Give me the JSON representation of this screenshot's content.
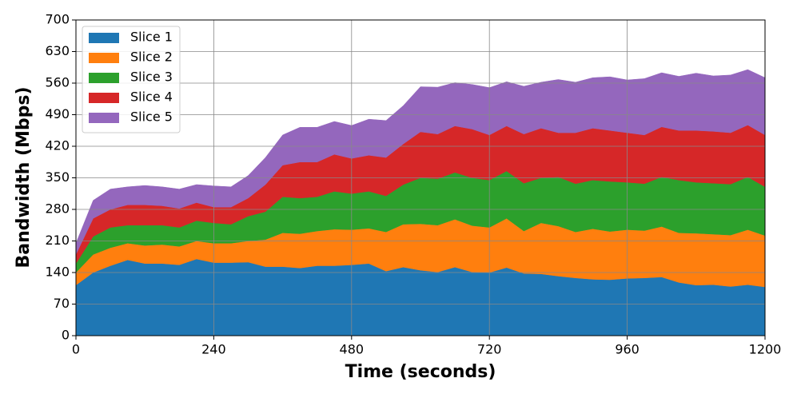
{
  "chart_data": {
    "type": "stacked_area",
    "x_label": "Time (seconds)",
    "y_label": "Bandwidth (Mbps)",
    "x": [
      0,
      30,
      60,
      90,
      120,
      150,
      180,
      210,
      240,
      270,
      300,
      330,
      360,
      390,
      420,
      450,
      480,
      510,
      540,
      570,
      600,
      630,
      660,
      690,
      720,
      750,
      780,
      810,
      840,
      870,
      900,
      930,
      960,
      990,
      1020,
      1050,
      1080,
      1110,
      1140,
      1170,
      1200
    ],
    "series": [
      {
        "name": "Slice 1",
        "color": "#1f77b4",
        "values": [
          112,
          140,
          155,
          168,
          160,
          160,
          157,
          170,
          162,
          162,
          163,
          153,
          153,
          150,
          155,
          155,
          157,
          160,
          143,
          152,
          145,
          141,
          152,
          141,
          140,
          151,
          138,
          137,
          132,
          128,
          125,
          124,
          127,
          128,
          130,
          118,
          112,
          113,
          109,
          113,
          108
        ]
      },
      {
        "name": "Slice 2",
        "color": "#ff7f0e",
        "values": [
          28,
          40,
          40,
          37,
          40,
          42,
          41,
          40,
          43,
          43,
          47,
          60,
          75,
          76,
          77,
          81,
          78,
          78,
          87,
          95,
          103,
          104,
          106,
          103,
          100,
          109,
          94,
          113,
          111,
          102,
          112,
          107,
          108,
          105,
          112,
          110,
          115,
          112,
          114,
          122,
          114
        ]
      },
      {
        "name": "Slice 3",
        "color": "#2ca02c",
        "values": [
          20,
          40,
          45,
          40,
          45,
          43,
          42,
          45,
          45,
          42,
          55,
          62,
          80,
          79,
          76,
          84,
          80,
          82,
          80,
          88,
          102,
          103,
          104,
          106,
          105,
          105,
          106,
          100,
          109,
          107,
          108,
          111,
          105,
          104,
          110,
          117,
          113,
          113,
          113,
          117,
          108
        ]
      },
      {
        "name": "Slice 4",
        "color": "#d62728",
        "values": [
          20,
          40,
          40,
          45,
          45,
          43,
          42,
          40,
          35,
          38,
          40,
          60,
          70,
          80,
          77,
          82,
          78,
          80,
          85,
          90,
          102,
          99,
          103,
          108,
          100,
          100,
          109,
          110,
          98,
          113,
          115,
          113,
          110,
          108,
          111,
          110,
          115,
          115,
          114,
          115,
          115
        ]
      },
      {
        "name": "Slice 5",
        "color": "#9467bd",
        "values": [
          25,
          40,
          45,
          40,
          43,
          42,
          43,
          40,
          47,
          45,
          50,
          60,
          67,
          77,
          77,
          73,
          73,
          80,
          82,
          85,
          100,
          104,
          96,
          99,
          105,
          98,
          106,
          102,
          118,
          112,
          112,
          119,
          117,
          125,
          120,
          120,
          127,
          123,
          128,
          123,
          127
        ]
      }
    ],
    "xlim": [
      0,
      1200
    ],
    "xticks": [
      0,
      240,
      480,
      720,
      960,
      1200
    ],
    "ylim": [
      0,
      700
    ],
    "yticks": [
      0,
      70,
      140,
      210,
      280,
      350,
      420,
      490,
      560,
      630,
      700
    ],
    "grid": true,
    "legend": "upper-left"
  }
}
